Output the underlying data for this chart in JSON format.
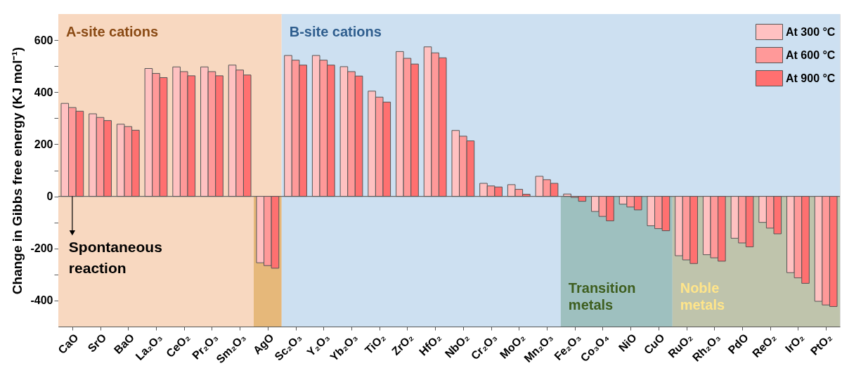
{
  "chart_data": {
    "type": "bar",
    "ylabel": "Change in Gibbs free energy (KJ mol⁻¹)",
    "categories": [
      "CaO",
      "SrO",
      "BaO",
      "La₂O₃",
      "CeO₂",
      "Pr₂O₃",
      "Sm₂O₃",
      "AgO",
      "Sc₂O₃",
      "Y₂O₃",
      "Yb₂O₃",
      "TiO₂",
      "ZrO₂",
      "HfO₂",
      "NbO₂",
      "Cr₂O₃",
      "MoO₂",
      "Mn₂O₃",
      "Fe₂O₃",
      "Co₃O₄",
      "NiO",
      "CuO",
      "RuO₂",
      "Rh₂O₃",
      "PdO",
      "ReO₂",
      "IrO₂",
      "PtO₂"
    ],
    "series": [
      {
        "name": "At 300 °C",
        "color": "#ffc1c1",
        "values": [
          357,
          317,
          277,
          491,
          497,
          497,
          504,
          -255,
          541,
          541,
          498,
          404,
          556,
          574,
          253,
          50,
          45,
          77,
          9,
          -58,
          -30,
          -113,
          -228,
          -224,
          -161,
          -100,
          -293,
          -403
        ]
      },
      {
        "name": "At 600 °C",
        "color": "#ff9999",
        "values": [
          341,
          303,
          268,
          472,
          479,
          479,
          485,
          -266,
          523,
          523,
          479,
          381,
          530,
          551,
          231,
          40,
          27,
          64,
          -4,
          -77,
          -41,
          -124,
          -244,
          -236,
          -179,
          -122,
          -313,
          -417
        ]
      },
      {
        "name": "At 900 °C",
        "color": "#ff7070",
        "values": [
          327,
          291,
          254,
          456,
          463,
          463,
          466,
          -276,
          504,
          504,
          462,
          362,
          508,
          532,
          213,
          36,
          8,
          50,
          -19,
          -94,
          -52,
          -132,
          -258,
          -249,
          -194,
          -144,
          -334,
          -423
        ]
      }
    ],
    "ylim": [
      -500,
      700
    ],
    "yticks": [
      -400,
      {
        "value": -300,
        "label": null
      },
      -200,
      {
        "value": -100,
        "label": null
      },
      0,
      {
        "value": 100,
        "label": null
      },
      200,
      {
        "value": 300,
        "label": null
      },
      400,
      {
        "value": 500,
        "label": null
      },
      600
    ],
    "legend": "top right",
    "bands": [
      {
        "axis": "x",
        "from": "CaO",
        "to": "AgO",
        "label": "A-site cations",
        "color": "#f8d8c0"
      },
      {
        "axis": "x",
        "from": "AgO",
        "to": "AgO",
        "color": "#e6b87a"
      },
      {
        "axis": "x",
        "from": "Sc₂O₃",
        "to": "PtO₂",
        "label": "B-site cations",
        "color": "#cde0f1"
      },
      {
        "axis": "x",
        "from": "Fe₂O₃",
        "to": "CuO",
        "label": "Transition metals",
        "color": "#9ec0bf"
      },
      {
        "axis": "x",
        "from": "RuO₂",
        "to": "PtO₂",
        "label": "Noble metals",
        "color": "#bfc4ac"
      }
    ],
    "ref_lines": [
      {
        "axis": "y",
        "value": 0,
        "color": "#666666"
      }
    ],
    "annotations": [
      {
        "text": "Spontaneous reaction",
        "x": "CaO",
        "y": 0
      }
    ]
  }
}
